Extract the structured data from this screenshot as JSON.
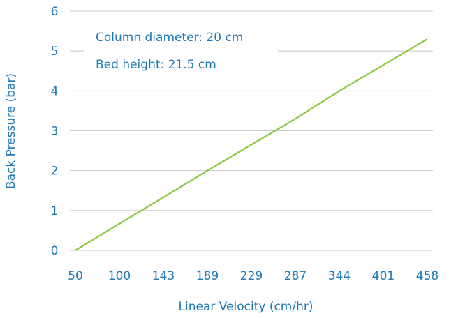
{
  "chart_data": {
    "type": "line",
    "x_label": "Linear Velocity (cm/hr)",
    "y_label": "Back Pressure (bar)",
    "annotations": [
      "Column diameter: 20 cm",
      "Bed height: 21.5 cm"
    ],
    "categories": [
      "50",
      "100",
      "143",
      "189",
      "229",
      "287",
      "344",
      "401",
      "458"
    ],
    "series": [
      {
        "name": "Back Pressure",
        "color": "#8dc63f",
        "values": [
          0,
          0.67,
          1.33,
          2,
          2.65,
          3.3,
          4,
          4.65,
          5.3
        ]
      }
    ],
    "ylim": [
      0,
      6
    ],
    "yticks": [
      0,
      1,
      2,
      3,
      4,
      5,
      6
    ],
    "grid": true
  }
}
